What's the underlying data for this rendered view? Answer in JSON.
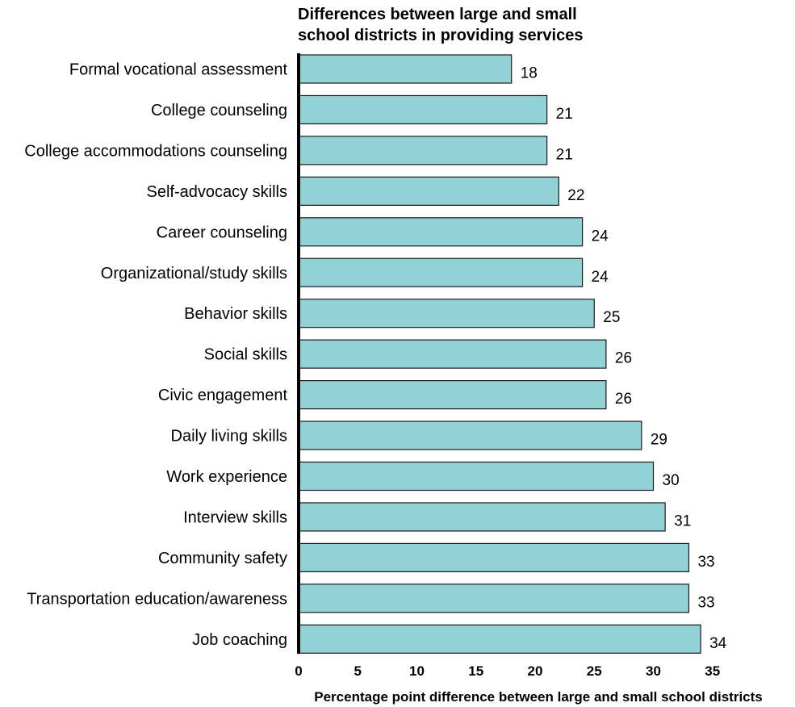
{
  "chart_data": {
    "type": "bar",
    "orientation": "horizontal",
    "title_lines": [
      "Differences between large and small",
      "school districts in providing services"
    ],
    "xlabel": "Percentage point difference between large and small school districts",
    "ylabel": "",
    "xlim": [
      0,
      35
    ],
    "xticks": [
      0,
      5,
      10,
      15,
      20,
      25,
      30,
      35
    ],
    "grid": false,
    "legend": "none",
    "bar_color": "#92d1d6",
    "categories": [
      "Formal vocational assessment",
      "College counseling",
      "College accommodations counseling",
      "Self-advocacy skills",
      "Career counseling",
      "Organizational/study skills",
      "Behavior skills",
      "Social skills",
      "Civic engagement",
      "Daily living skills",
      "Work experience",
      "Interview skills",
      "Community safety",
      "Transportation education/awareness",
      "Job coaching"
    ],
    "values": [
      18,
      21,
      21,
      22,
      24,
      24,
      25,
      26,
      26,
      29,
      30,
      31,
      33,
      33,
      34
    ]
  }
}
